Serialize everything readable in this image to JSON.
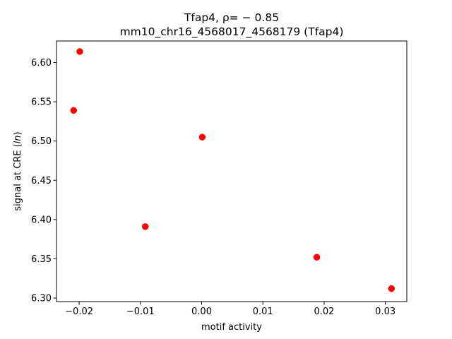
{
  "chart_data": {
    "type": "scatter",
    "title_line1": "Tfap4, ρ= − 0.85",
    "title_line2": "mm10_chr16_4568017_4568179 (Tfap4)",
    "xlabel": "motif activity",
    "ylabel": "signal at CRE (ln)",
    "xlim": [
      -0.0237,
      0.0335
    ],
    "ylim": [
      6.2955,
      6.6275
    ],
    "xticks": [
      -0.02,
      -0.01,
      0.0,
      0.01,
      0.02,
      0.03
    ],
    "xtick_labels": [
      "−0.02",
      "−0.01",
      "0.00",
      "0.01",
      "0.02",
      "0.03"
    ],
    "yticks": [
      6.3,
      6.35,
      6.4,
      6.45,
      6.5,
      6.55,
      6.6
    ],
    "ytick_labels": [
      "6.30",
      "6.35",
      "6.40",
      "6.45",
      "6.50",
      "6.55",
      "6.60"
    ],
    "marker_color": "#ff0000",
    "grid": false,
    "points": [
      {
        "x": -0.0199,
        "y": 6.614
      },
      {
        "x": -0.0209,
        "y": 6.539
      },
      {
        "x": 0.0001,
        "y": 6.505
      },
      {
        "x": -0.0092,
        "y": 6.391
      },
      {
        "x": 0.0188,
        "y": 6.352
      },
      {
        "x": 0.031,
        "y": 6.312
      }
    ]
  }
}
